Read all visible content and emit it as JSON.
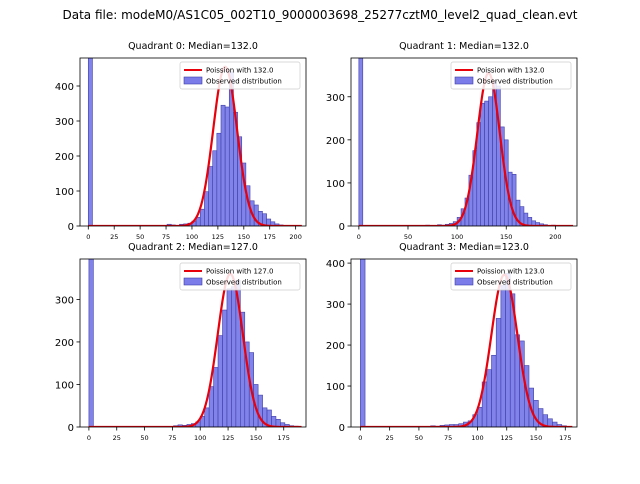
{
  "figure": {
    "title": "Data file: modeM0/AS1C05_002T10_9000003698_25277cztM0_level2_quad_clean.evt"
  },
  "colors": {
    "bar_fill": "#7b7bea",
    "bar_edge": "#3f3fa8",
    "fit_line": "#e8000b",
    "axis": "#000000"
  },
  "chart_data": [
    {
      "type": "bar",
      "title": "Quadrant 0: Median=132.0",
      "legend": [
        "Poission with 132.0",
        "Observed distribution"
      ],
      "legend_loc": "top-right",
      "xlim": [
        -8,
        210
      ],
      "ylim": [
        0,
        480
      ],
      "xticks": [
        0,
        25,
        50,
        75,
        100,
        125,
        150,
        175,
        200
      ],
      "yticks": [
        0,
        100,
        200,
        300,
        400
      ],
      "bin_width": 4,
      "bins": [
        [
          0,
          480
        ],
        [
          76,
          5
        ],
        [
          80,
          3
        ],
        [
          84,
          2
        ],
        [
          88,
          5
        ],
        [
          92,
          6
        ],
        [
          96,
          8
        ],
        [
          100,
          14
        ],
        [
          104,
          25
        ],
        [
          108,
          48
        ],
        [
          112,
          98
        ],
        [
          116,
          170
        ],
        [
          120,
          215
        ],
        [
          124,
          265
        ],
        [
          128,
          345
        ],
        [
          132,
          340
        ],
        [
          136,
          440
        ],
        [
          140,
          325
        ],
        [
          144,
          255
        ],
        [
          148,
          180
        ],
        [
          152,
          115
        ],
        [
          156,
          72
        ],
        [
          160,
          60
        ],
        [
          164,
          42
        ],
        [
          168,
          35
        ],
        [
          172,
          20
        ],
        [
          176,
          12
        ],
        [
          180,
          6
        ],
        [
          184,
          3
        ],
        [
          188,
          2
        ],
        [
          196,
          1
        ]
      ],
      "fit": {
        "mean": 132.0,
        "peak": 455
      }
    },
    {
      "type": "bar",
      "title": "Quadrant 1: Median=132.0",
      "legend": [
        "Poission with 132.0",
        "Observed distribution"
      ],
      "legend_loc": "top-right",
      "xlim": [
        -8,
        222
      ],
      "ylim": [
        0,
        390
      ],
      "xticks": [
        0,
        50,
        100,
        150,
        200
      ],
      "yticks": [
        0,
        100,
        200,
        300
      ],
      "bin_width": 4,
      "bins": [
        [
          0,
          390
        ],
        [
          68,
          2
        ],
        [
          72,
          1
        ],
        [
          80,
          3
        ],
        [
          84,
          2
        ],
        [
          88,
          4
        ],
        [
          92,
          6
        ],
        [
          96,
          10
        ],
        [
          100,
          20
        ],
        [
          104,
          40
        ],
        [
          108,
          65
        ],
        [
          112,
          118
        ],
        [
          116,
          175
        ],
        [
          120,
          240
        ],
        [
          124,
          285
        ],
        [
          128,
          290
        ],
        [
          132,
          300
        ],
        [
          136,
          335
        ],
        [
          140,
          325
        ],
        [
          144,
          230
        ],
        [
          148,
          200
        ],
        [
          152,
          125
        ],
        [
          156,
          120
        ],
        [
          160,
          60
        ],
        [
          164,
          45
        ],
        [
          168,
          30
        ],
        [
          172,
          20
        ],
        [
          176,
          12
        ],
        [
          180,
          8
        ],
        [
          184,
          5
        ],
        [
          188,
          3
        ],
        [
          196,
          2
        ],
        [
          200,
          1
        ]
      ],
      "fit": {
        "mean": 132.0,
        "peak": 355
      }
    },
    {
      "type": "bar",
      "title": "Quadrant 2: Median=127.0",
      "legend": [
        "Poission with 127.0",
        "Observed distribution"
      ],
      "legend_loc": "top-right",
      "xlim": [
        -8,
        195
      ],
      "ylim": [
        0,
        395
      ],
      "xticks": [
        0,
        25,
        50,
        75,
        100,
        125,
        150,
        175
      ],
      "yticks": [
        0,
        100,
        200,
        300
      ],
      "bin_width": 4,
      "bins": [
        [
          0,
          395
        ],
        [
          76,
          3
        ],
        [
          80,
          5
        ],
        [
          84,
          4
        ],
        [
          88,
          6
        ],
        [
          92,
          8
        ],
        [
          96,
          12
        ],
        [
          100,
          25
        ],
        [
          104,
          45
        ],
        [
          108,
          95
        ],
        [
          112,
          140
        ],
        [
          116,
          215
        ],
        [
          120,
          275
        ],
        [
          124,
          325
        ],
        [
          128,
          330
        ],
        [
          132,
          345
        ],
        [
          136,
          270
        ],
        [
          140,
          200
        ],
        [
          144,
          175
        ],
        [
          148,
          100
        ],
        [
          152,
          75
        ],
        [
          156,
          45
        ],
        [
          160,
          40
        ],
        [
          164,
          25
        ],
        [
          168,
          18
        ],
        [
          172,
          10
        ],
        [
          176,
          6
        ],
        [
          180,
          3
        ],
        [
          184,
          2
        ]
      ],
      "fit": {
        "mean": 127.0,
        "peak": 360
      }
    },
    {
      "type": "bar",
      "title": "Quadrant 3: Median=123.0",
      "legend": [
        "Poission with 123.0",
        "Observed distribution"
      ],
      "legend_loc": "top-right",
      "xlim": [
        -8,
        185
      ],
      "ylim": [
        0,
        410
      ],
      "xticks": [
        0,
        25,
        50,
        75,
        100,
        125,
        150,
        175
      ],
      "yticks": [
        0,
        100,
        200,
        300,
        400
      ],
      "bin_width": 4,
      "bins": [
        [
          0,
          410
        ],
        [
          60,
          3
        ],
        [
          64,
          2
        ],
        [
          68,
          4
        ],
        [
          72,
          5
        ],
        [
          76,
          6
        ],
        [
          80,
          6
        ],
        [
          84,
          8
        ],
        [
          88,
          12
        ],
        [
          92,
          15
        ],
        [
          96,
          30
        ],
        [
          100,
          48
        ],
        [
          104,
          110
        ],
        [
          108,
          140
        ],
        [
          112,
          175
        ],
        [
          116,
          265
        ],
        [
          120,
          345
        ],
        [
          124,
          375
        ],
        [
          128,
          325
        ],
        [
          132,
          225
        ],
        [
          136,
          210
        ],
        [
          140,
          150
        ],
        [
          144,
          95
        ],
        [
          148,
          65
        ],
        [
          152,
          45
        ],
        [
          156,
          30
        ],
        [
          160,
          20
        ],
        [
          164,
          12
        ],
        [
          168,
          6
        ],
        [
          172,
          3
        ],
        [
          176,
          1
        ]
      ],
      "fit": {
        "mean": 123.0,
        "peak": 372
      }
    }
  ]
}
